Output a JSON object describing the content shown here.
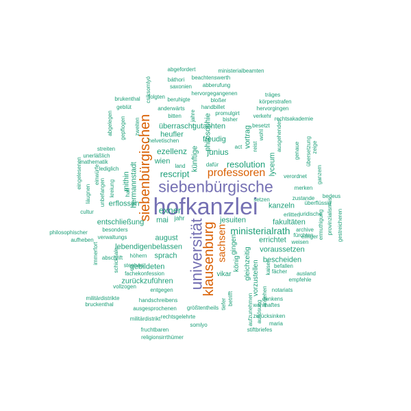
{
  "words": [
    {
      "text": "hofkanzlei",
      "color": "#7570b3"
    },
    {
      "text": "siebenbürgische",
      "color": "#7570b3"
    },
    {
      "text": "universität",
      "color": "#7570b3"
    },
    {
      "text": "siebenbürgischen",
      "color": "#d95f02"
    },
    {
      "text": "klausenburg",
      "color": "#d95f02"
    },
    {
      "text": "professoren",
      "color": "#d95f02"
    },
    {
      "text": "sachsen",
      "color": "#d95f02"
    },
    {
      "text": "ministerialrath",
      "color": "#1b9e77"
    },
    {
      "text": "resolution",
      "color": "#1b9e77"
    },
    {
      "text": "rescript",
      "color": "#1b9e77"
    },
    {
      "text": "exner",
      "color": "#1b9e77"
    },
    {
      "text": "ezellenz",
      "color": "#1b9e77"
    },
    {
      "text": "wien",
      "color": "#1b9e77"
    },
    {
      "text": "junius",
      "color": "#1b9e77"
    },
    {
      "text": "freudig",
      "color": "#1b9e77"
    },
    {
      "text": "heufler",
      "color": "#1b9e77"
    },
    {
      "text": "überrascht",
      "color": "#1b9e77"
    },
    {
      "text": "gutachten",
      "color": "#1b9e77"
    },
    {
      "text": "philosophie",
      "color": "#1b9e77"
    },
    {
      "text": "künftige",
      "color": "#1b9e77"
    },
    {
      "text": "mai",
      "color": "#1b9e77"
    },
    {
      "text": "jahr",
      "color": "#1b9e77"
    },
    {
      "text": "entschließung",
      "color": "#1b9e77"
    },
    {
      "text": "lebendigen",
      "color": "#1b9e77"
    },
    {
      "text": "belassen",
      "color": "#1b9e77"
    },
    {
      "text": "sprach",
      "color": "#1b9e77"
    },
    {
      "text": "gebildeten",
      "color": "#1b9e77"
    },
    {
      "text": "zurückzuführen",
      "color": "#1b9e77"
    },
    {
      "text": "august",
      "color": "#1b9e77"
    },
    {
      "text": "jesuiten",
      "color": "#1b9e77"
    },
    {
      "text": "fakultäten",
      "color": "#1b9e77"
    },
    {
      "text": "kanzeln",
      "color": "#1b9e77"
    },
    {
      "text": "errichtet",
      "color": "#1b9e77"
    },
    {
      "text": "voraussetzen",
      "color": "#1b9e77"
    },
    {
      "text": "bescheiden",
      "color": "#1b9e77"
    },
    {
      "text": "lyceum",
      "color": "#1b9e77"
    },
    {
      "text": "vortrag",
      "color": "#1b9e77"
    },
    {
      "text": "könig",
      "color": "#1b9e77"
    },
    {
      "text": "gleichzeitig",
      "color": "#1b9e77"
    },
    {
      "text": "gingen",
      "color": "#1b9e77"
    },
    {
      "text": "vikar",
      "color": "#1b9e77"
    },
    {
      "text": "vorzustellen",
      "color": "#1b9e77"
    },
    {
      "text": "hermannstadt",
      "color": "#1b9e77"
    },
    {
      "text": "mithin",
      "color": "#1b9e77"
    },
    {
      "text": "erflossen",
      "color": "#1b9e77"
    },
    {
      "text": "abgefordert",
      "color": "#1b9e77"
    },
    {
      "text": "ministerialbeamten",
      "color": "#1b9e77"
    },
    {
      "text": "báthori",
      "color": "#1b9e77"
    },
    {
      "text": "beachtenswerth",
      "color": "#1b9e77"
    },
    {
      "text": "saxonien",
      "color": "#1b9e77"
    },
    {
      "text": "abberufung",
      "color": "#1b9e77"
    },
    {
      "text": "csiksomlyó",
      "color": "#1b9e77"
    },
    {
      "text": "hervorgegangenen",
      "color": "#1b9e77"
    },
    {
      "text": "träges",
      "color": "#1b9e77"
    },
    {
      "text": "brukenthal",
      "color": "#1b9e77"
    },
    {
      "text": "folgten",
      "color": "#1b9e77"
    },
    {
      "text": "beruhigte",
      "color": "#1b9e77"
    },
    {
      "text": "bloßer",
      "color": "#1b9e77"
    },
    {
      "text": "körperstrafen",
      "color": "#1b9e77"
    },
    {
      "text": "geblüt",
      "color": "#1b9e77"
    },
    {
      "text": "anderwärts",
      "color": "#1b9e77"
    },
    {
      "text": "handbillet",
      "color": "#1b9e77"
    },
    {
      "text": "hervorgingen",
      "color": "#1b9e77"
    },
    {
      "text": "promulgirt",
      "color": "#1b9e77"
    },
    {
      "text": "bitten",
      "color": "#1b9e77"
    },
    {
      "text": "jahre",
      "color": "#1b9e77"
    },
    {
      "text": "verkehr",
      "color": "#1b9e77"
    },
    {
      "text": "bisher",
      "color": "#1b9e77"
    },
    {
      "text": "rechtsakademie",
      "color": "#1b9e77"
    },
    {
      "text": "besetzt",
      "color": "#1b9e77"
    },
    {
      "text": "abgelegen",
      "color": "#1b9e77"
    },
    {
      "text": "gepflogen",
      "color": "#1b9e77"
    },
    {
      "text": "zweiten",
      "color": "#1b9e77"
    },
    {
      "text": "ausgehendes",
      "color": "#1b9e77"
    },
    {
      "text": "helvetischen",
      "color": "#1b9e77"
    },
    {
      "text": "wohl",
      "color": "#1b9e77"
    },
    {
      "text": "reist",
      "color": "#1b9e77"
    },
    {
      "text": "genaue",
      "color": "#1b9e77"
    },
    {
      "text": "übersetzung",
      "color": "#1b9e77"
    },
    {
      "text": "zeige",
      "color": "#1b9e77"
    },
    {
      "text": "act",
      "color": "#1b9e77"
    },
    {
      "text": "streiten",
      "color": "#1b9e77"
    },
    {
      "text": "unerläßlich",
      "color": "#1b9e77"
    },
    {
      "text": "mathematik",
      "color": "#1b9e77"
    },
    {
      "text": "lediglich",
      "color": "#1b9e77"
    },
    {
      "text": "land",
      "color": "#1b9e77"
    },
    {
      "text": "dafür",
      "color": "#1b9e77"
    },
    {
      "text": "ganzem",
      "color": "#1b9e77"
    },
    {
      "text": "verordnet",
      "color": "#1b9e77"
    },
    {
      "text": "eingelesenen",
      "color": "#1b9e77"
    },
    {
      "text": "einwürfe",
      "color": "#1b9e77"
    },
    {
      "text": "läugnen",
      "color": "#1b9e77"
    },
    {
      "text": "unbefangen",
      "color": "#1b9e77"
    },
    {
      "text": "kreiung",
      "color": "#1b9e77"
    },
    {
      "text": "halt",
      "color": "#1b9e77"
    },
    {
      "text": "merken",
      "color": "#1b9e77"
    },
    {
      "text": "bedeus",
      "color": "#1b9e77"
    },
    {
      "text": "überflüssig",
      "color": "#1b9e77"
    },
    {
      "text": "zustande",
      "color": "#1b9e77"
    },
    {
      "text": "juridische",
      "color": "#1b9e77"
    },
    {
      "text": "provinzialismus",
      "color": "#1b9e77"
    },
    {
      "text": "ermuthigung",
      "color": "#1b9e77"
    },
    {
      "text": "gestreicheren",
      "color": "#1b9e77"
    },
    {
      "text": "setzen",
      "color": "#1b9e77"
    },
    {
      "text": "erlitten",
      "color": "#1b9e77"
    },
    {
      "text": "cultur",
      "color": "#1b9e77"
    },
    {
      "text": "philosophischer",
      "color": "#1b9e77"
    },
    {
      "text": "besonders",
      "color": "#1b9e77"
    },
    {
      "text": "verwaltungs",
      "color": "#1b9e77"
    },
    {
      "text": "aufheben",
      "color": "#1b9e77"
    },
    {
      "text": "archive",
      "color": "#1b9e77"
    },
    {
      "text": "eifriger",
      "color": "#1b9e77"
    },
    {
      "text": "befallen",
      "color": "#1b9e77"
    },
    {
      "text": "fürchten",
      "color": "#1b9e77"
    },
    {
      "text": "weisen",
      "color": "#1b9e77"
    },
    {
      "text": "immerfort",
      "color": "#1b9e77"
    },
    {
      "text": "abschrift",
      "color": "#1b9e77"
    },
    {
      "text": "höhern",
      "color": "#1b9e77"
    },
    {
      "text": "schicksale",
      "color": "#1b9e77"
    },
    {
      "text": "stephan",
      "color": "#1b9e77"
    },
    {
      "text": "fachekonfession",
      "color": "#1b9e77"
    },
    {
      "text": "vollzogen",
      "color": "#1b9e77"
    },
    {
      "text": "kaiser",
      "color": "#1b9e77"
    },
    {
      "text": "fächer",
      "color": "#1b9e77"
    },
    {
      "text": "ausland",
      "color": "#1b9e77"
    },
    {
      "text": "empfehle",
      "color": "#1b9e77"
    },
    {
      "text": "entgegen",
      "color": "#1b9e77"
    },
    {
      "text": "militärdistrikte",
      "color": "#1b9e77"
    },
    {
      "text": "handschreibens",
      "color": "#1b9e77"
    },
    {
      "text": "notariats",
      "color": "#1b9e77"
    },
    {
      "text": "denkens",
      "color": "#1b9e77"
    },
    {
      "text": "bruckenthal",
      "color": "#1b9e77"
    },
    {
      "text": "größtentheils",
      "color": "#1b9e77"
    },
    {
      "text": "wahrhaftes",
      "color": "#1b9e77"
    },
    {
      "text": "ausgesprochenen",
      "color": "#1b9e77"
    },
    {
      "text": "tiefer",
      "color": "#1b9e77"
    },
    {
      "text": "betrifft",
      "color": "#1b9e77"
    },
    {
      "text": "aufzunehmen",
      "color": "#1b9e77"
    },
    {
      "text": "auflösung",
      "color": "#1b9e77"
    },
    {
      "text": "angehen",
      "color": "#1b9e77"
    },
    {
      "text": "zurücksinken",
      "color": "#1b9e77"
    },
    {
      "text": "militärdistrikt",
      "color": "#1b9e77"
    },
    {
      "text": "rechtsgelehrte",
      "color": "#1b9e77"
    },
    {
      "text": "somlyo",
      "color": "#1b9e77"
    },
    {
      "text": "maria",
      "color": "#1b9e77"
    },
    {
      "text": "stiftbriefes",
      "color": "#1b9e77"
    },
    {
      "text": "fruchtbaren",
      "color": "#1b9e77"
    },
    {
      "text": "religionsirrthümer",
      "color": "#1b9e77"
    }
  ]
}
